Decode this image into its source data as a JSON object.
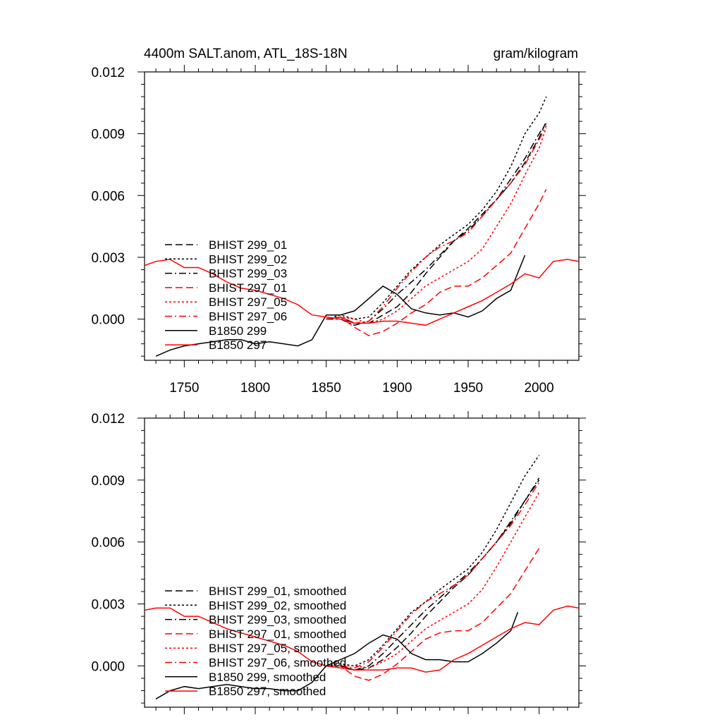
{
  "chart_data": [
    {
      "type": "line",
      "title_left": "4400m SALT.anom, ATL_18S-18N",
      "title_right": "gram/kilogram",
      "xlabel": "",
      "ylabel": "",
      "xlim": [
        1722,
        2028
      ],
      "ylim": [
        -0.002,
        0.012
      ],
      "xticks": [
        1750,
        1800,
        1850,
        1900,
        1950,
        2000
      ],
      "xtick_labels": [
        "1750",
        "1800",
        "1850",
        "1900",
        "1950",
        "2000"
      ],
      "yticks": [
        0.0,
        0.003,
        0.006,
        0.009,
        0.012
      ],
      "ytick_labels": [
        "0.000",
        "0.003",
        "0.006",
        "0.009",
        "0.012"
      ],
      "legend_position": "left",
      "series": [
        {
          "name": "BHIST 299_01",
          "color": "#000000",
          "dash": "dash",
          "x": [
            1850,
            1860,
            1870,
            1880,
            1890,
            1900,
            1910,
            1920,
            1930,
            1940,
            1950,
            1960,
            1970,
            1980,
            1990,
            2000,
            2005
          ],
          "y": [
            0.0,
            0.0001,
            -0.0002,
            -0.0002,
            0.0002,
            0.0006,
            0.0013,
            0.0022,
            0.003,
            0.0038,
            0.0044,
            0.0051,
            0.0058,
            0.0066,
            0.0076,
            0.0088,
            0.0096
          ]
        },
        {
          "name": "BHIST 299_02",
          "color": "#000000",
          "dash": "dot",
          "x": [
            1850,
            1860,
            1870,
            1880,
            1890,
            1900,
            1910,
            1920,
            1930,
            1940,
            1950,
            1960,
            1970,
            1980,
            1990,
            2000,
            2005
          ],
          "y": [
            0.0,
            0.0002,
            0.0,
            0.0001,
            0.0008,
            0.0016,
            0.0024,
            0.003,
            0.0036,
            0.0041,
            0.0046,
            0.0053,
            0.0062,
            0.0074,
            0.009,
            0.01,
            0.0108
          ]
        },
        {
          "name": "BHIST 299_03",
          "color": "#000000",
          "dash": "dashdot",
          "x": [
            1850,
            1860,
            1870,
            1880,
            1890,
            1900,
            1910,
            1920,
            1930,
            1940,
            1950,
            1960,
            1970,
            1980,
            1990,
            2000,
            2005
          ],
          "y": [
            0.0,
            0.0,
            -0.0003,
            -0.0001,
            0.0005,
            0.0012,
            0.0018,
            0.0024,
            0.0031,
            0.0038,
            0.0043,
            0.005,
            0.0058,
            0.0068,
            0.0078,
            0.009,
            0.0095
          ]
        },
        {
          "name": "BHIST 297_01",
          "color": "#ff0000",
          "dash": "dash",
          "x": [
            1850,
            1860,
            1870,
            1880,
            1890,
            1900,
            1910,
            1920,
            1930,
            1940,
            1950,
            1960,
            1970,
            1980,
            1990,
            2000,
            2005
          ],
          "y": [
            0.0,
            0.0001,
            -0.0004,
            -0.0008,
            -0.0006,
            -0.0002,
            0.0003,
            0.0007,
            0.0013,
            0.0016,
            0.0016,
            0.002,
            0.0026,
            0.0032,
            0.0044,
            0.0056,
            0.0063
          ]
        },
        {
          "name": "BHIST 297_05",
          "color": "#ff0000",
          "dash": "dot",
          "x": [
            1850,
            1860,
            1870,
            1880,
            1890,
            1900,
            1910,
            1920,
            1930,
            1940,
            1950,
            1960,
            1970,
            1980,
            1990,
            2000,
            2005
          ],
          "y": [
            0.0,
            0.0001,
            0.0,
            -0.0002,
            0.0,
            0.0004,
            0.001,
            0.0016,
            0.002,
            0.0024,
            0.0028,
            0.0034,
            0.0045,
            0.0056,
            0.007,
            0.0083,
            0.0093
          ]
        },
        {
          "name": "BHIST 297_06",
          "color": "#ff0000",
          "dash": "dashdot",
          "x": [
            1850,
            1860,
            1870,
            1880,
            1890,
            1900,
            1910,
            1920,
            1930,
            1940,
            1950,
            1960,
            1970,
            1980,
            1990,
            2000,
            2005
          ],
          "y": [
            0.0,
            0.0001,
            -0.0002,
            -0.0001,
            0.0006,
            0.0015,
            0.0023,
            0.003,
            0.0035,
            0.0038,
            0.0042,
            0.005,
            0.0058,
            0.0066,
            0.0075,
            0.0087,
            0.0094
          ]
        },
        {
          "name": "B1850 299",
          "color": "#000000",
          "dash": "solid",
          "x": [
            1730,
            1740,
            1750,
            1760,
            1770,
            1780,
            1790,
            1800,
            1810,
            1820,
            1830,
            1840,
            1850,
            1860,
            1870,
            1880,
            1890,
            1900,
            1910,
            1920,
            1930,
            1940,
            1950,
            1960,
            1970,
            1980,
            1990
          ],
          "y": [
            -0.0018,
            -0.0015,
            -0.0013,
            -0.0012,
            -0.0011,
            -0.001,
            -0.001,
            -0.0012,
            -0.0011,
            -0.0012,
            -0.0013,
            -0.001,
            0.0002,
            0.0002,
            0.0004,
            0.001,
            0.0016,
            0.0012,
            0.0005,
            0.0003,
            0.0002,
            0.0003,
            0.0001,
            0.0004,
            0.001,
            0.0014,
            0.0031
          ]
        },
        {
          "name": "B1850 297",
          "color": "#ff0000",
          "dash": "solid",
          "x": [
            1722,
            1730,
            1740,
            1750,
            1760,
            1770,
            1780,
            1790,
            1800,
            1810,
            1820,
            1830,
            1840,
            1850,
            1860,
            1870,
            1880,
            1890,
            1900,
            1910,
            1920,
            1930,
            1940,
            1950,
            1960,
            1970,
            1980,
            1990,
            2000,
            2010,
            2020,
            2028
          ],
          "y": [
            0.0026,
            0.0028,
            0.0029,
            0.0025,
            0.0025,
            0.0022,
            0.0018,
            0.0015,
            0.0014,
            0.0012,
            0.001,
            0.0007,
            0.0002,
            0.0001,
            0.0,
            -0.0002,
            -0.0002,
            -0.0001,
            -0.0001,
            -0.0002,
            -0.0003,
            0.0,
            0.0003,
            0.0006,
            0.0009,
            0.0013,
            0.0017,
            0.0022,
            0.002,
            0.0028,
            0.0029,
            0.0028
          ]
        }
      ]
    },
    {
      "type": "line",
      "xlabel": "",
      "ylabel": "",
      "xlim": [
        1722,
        2028
      ],
      "ylim": [
        -0.002,
        0.012
      ],
      "xticks": [
        1750,
        1800,
        1850,
        1900,
        1950,
        2000
      ],
      "yticks": [
        0.0,
        0.003,
        0.006,
        0.009,
        0.012
      ],
      "ytick_labels": [
        "0.000",
        "0.003",
        "0.006",
        "0.009",
        "0.012"
      ],
      "legend_position": "left",
      "series": [
        {
          "name": "BHIST 299_01, smoothed",
          "color": "#000000",
          "dash": "dash",
          "x": [
            1850,
            1860,
            1870,
            1880,
            1890,
            1900,
            1910,
            1920,
            1930,
            1940,
            1950,
            1960,
            1970,
            1980,
            1990,
            2000
          ],
          "y": [
            0.0,
            0.0,
            -0.0002,
            -0.0001,
            0.0003,
            0.0009,
            0.0016,
            0.0024,
            0.0031,
            0.0038,
            0.0044,
            0.0052,
            0.006,
            0.0069,
            0.008,
            0.009
          ]
        },
        {
          "name": "BHIST 299_02, smoothed",
          "color": "#000000",
          "dash": "dot",
          "x": [
            1850,
            1860,
            1870,
            1880,
            1890,
            1900,
            1910,
            1920,
            1930,
            1940,
            1950,
            1960,
            1970,
            1980,
            1990,
            2000
          ],
          "y": [
            0.0,
            0.0001,
            0.0,
            0.0003,
            0.001,
            0.0018,
            0.0026,
            0.0031,
            0.0037,
            0.0042,
            0.0047,
            0.0055,
            0.0066,
            0.0079,
            0.0092,
            0.0102
          ]
        },
        {
          "name": "BHIST 299_03, smoothed",
          "color": "#000000",
          "dash": "dashdot",
          "x": [
            1850,
            1860,
            1870,
            1880,
            1890,
            1900,
            1910,
            1920,
            1930,
            1940,
            1950,
            1960,
            1970,
            1980,
            1990,
            2000
          ],
          "y": [
            0.0,
            0.0,
            -0.0002,
            0.0,
            0.0006,
            0.0013,
            0.002,
            0.0027,
            0.0033,
            0.0039,
            0.0045,
            0.0052,
            0.006,
            0.007,
            0.008,
            0.0091
          ]
        },
        {
          "name": "BHIST 297_01, smoothed",
          "color": "#ff0000",
          "dash": "dash",
          "x": [
            1850,
            1860,
            1870,
            1880,
            1890,
            1900,
            1910,
            1920,
            1930,
            1940,
            1950,
            1960,
            1970,
            1980,
            1990,
            2000
          ],
          "y": [
            0.0,
            0.0,
            -0.0005,
            -0.0007,
            -0.0004,
            0.0001,
            0.0007,
            0.0013,
            0.0016,
            0.0017,
            0.0017,
            0.0021,
            0.0028,
            0.0035,
            0.0046,
            0.0057
          ]
        },
        {
          "name": "BHIST 297_05, smoothed",
          "color": "#ff0000",
          "dash": "dot",
          "x": [
            1850,
            1860,
            1870,
            1880,
            1890,
            1900,
            1910,
            1920,
            1930,
            1940,
            1950,
            1960,
            1970,
            1980,
            1990,
            2000
          ],
          "y": [
            0.0,
            0.0,
            0.0,
            -0.0001,
            0.0002,
            0.0006,
            0.0012,
            0.0018,
            0.0022,
            0.0026,
            0.003,
            0.0037,
            0.0048,
            0.006,
            0.0072,
            0.0084
          ]
        },
        {
          "name": "BHIST 297_06, smoothed",
          "color": "#ff0000",
          "dash": "dashdot",
          "x": [
            1850,
            1860,
            1870,
            1880,
            1890,
            1900,
            1910,
            1920,
            1930,
            1940,
            1950,
            1960,
            1970,
            1980,
            1990,
            2000
          ],
          "y": [
            0.0,
            0.0,
            -0.0001,
            0.0002,
            0.0009,
            0.0017,
            0.0025,
            0.0031,
            0.0035,
            0.0039,
            0.0044,
            0.0052,
            0.006,
            0.0068,
            0.0078,
            0.0089
          ]
        },
        {
          "name": "B1850 299, smoothed",
          "color": "#000000",
          "dash": "solid",
          "x": [
            1730,
            1740,
            1750,
            1760,
            1770,
            1780,
            1790,
            1800,
            1810,
            1820,
            1830,
            1840,
            1850,
            1860,
            1870,
            1880,
            1890,
            1900,
            1910,
            1920,
            1930,
            1940,
            1950,
            1960,
            1970,
            1980,
            1985
          ],
          "y": [
            -0.0016,
            -0.0012,
            -0.001,
            -0.0011,
            -0.001,
            -0.0009,
            -0.001,
            -0.0011,
            -0.0011,
            -0.0012,
            -0.0012,
            -0.0008,
            0.0,
            0.0003,
            0.0006,
            0.0011,
            0.0015,
            0.0013,
            0.0006,
            0.0003,
            0.0003,
            0.0002,
            0.0002,
            0.0006,
            0.0011,
            0.0017,
            0.0026
          ]
        },
        {
          "name": "B1850 297, smoothed",
          "color": "#ff0000",
          "dash": "solid",
          "x": [
            1722,
            1730,
            1740,
            1750,
            1760,
            1770,
            1780,
            1790,
            1800,
            1810,
            1820,
            1830,
            1840,
            1850,
            1860,
            1870,
            1880,
            1890,
            1900,
            1910,
            1920,
            1930,
            1940,
            1950,
            1960,
            1970,
            1980,
            1990,
            2000,
            2010,
            2020,
            2028
          ],
          "y": [
            0.0027,
            0.0028,
            0.0028,
            0.0024,
            0.0024,
            0.0021,
            0.0018,
            0.0016,
            0.0014,
            0.0012,
            0.001,
            0.0007,
            0.0002,
            0.0,
            -0.0001,
            -0.0002,
            -0.0002,
            -0.0002,
            -0.0001,
            -0.0001,
            -0.0003,
            -0.0002,
            0.0003,
            0.0006,
            0.001,
            0.0014,
            0.0018,
            0.0021,
            0.002,
            0.0027,
            0.0029,
            0.0028
          ]
        }
      ]
    }
  ]
}
